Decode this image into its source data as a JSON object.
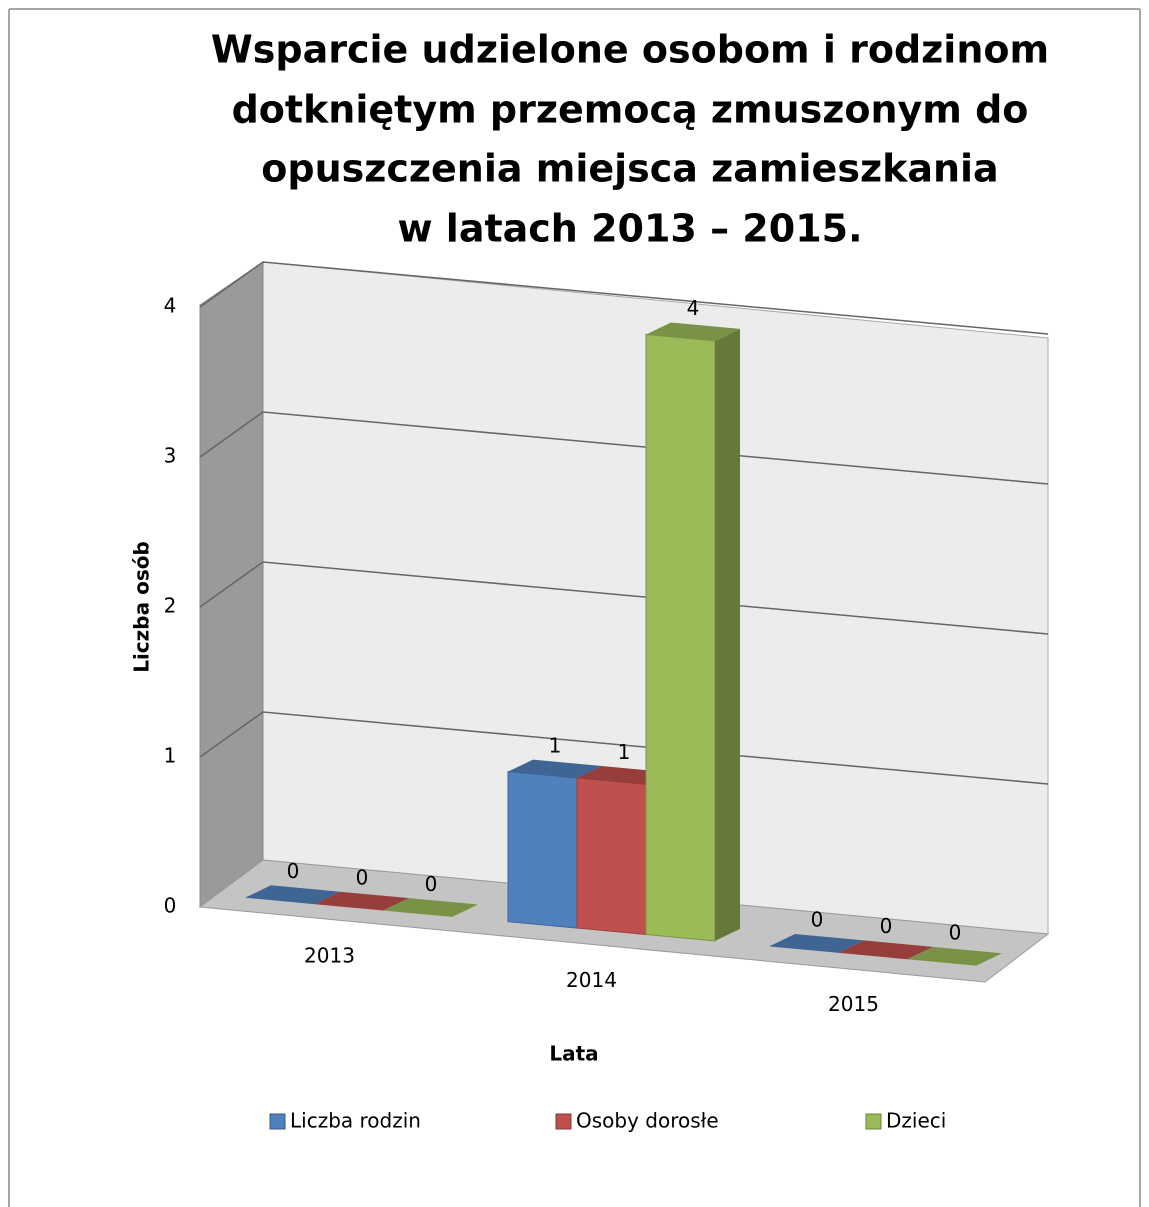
{
  "chart_data": {
    "type": "bar3d",
    "title": [
      "Wsparcie udzielone osobom i rodzinom",
      "dotkniętym przemocą zmuszonym do",
      "opuszczenia miejsca zamieszkania",
      "w latach 2013 – 2015."
    ],
    "x_label": "Lata",
    "y_label": "Liczba osób",
    "categories": [
      "2013",
      "2014",
      "2015"
    ],
    "series": [
      {
        "name": "Liczba rodzin",
        "color": "#4f81bd",
        "values": [
          0,
          1,
          0
        ]
      },
      {
        "name": "Osoby dorosłe",
        "color": "#c0504d",
        "values": [
          0,
          1,
          0
        ]
      },
      {
        "name": "Dzieci",
        "color": "#9bbb59",
        "values": [
          0,
          4,
          0
        ]
      }
    ],
    "ylim": [
      0,
      4
    ],
    "yticks": [
      0,
      1,
      2,
      3,
      4
    ],
    "grid": true,
    "legend": "bottom"
  }
}
